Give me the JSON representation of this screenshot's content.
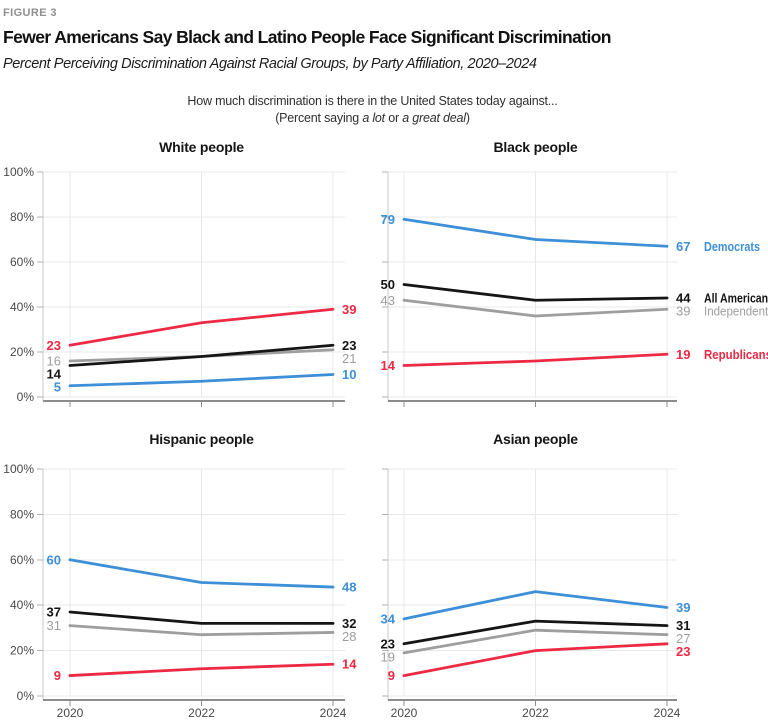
{
  "figure_label": "FIGURE 3",
  "title": "Fewer Americans Say Black and Latino People Face Significant Discrimination",
  "subtitle": "Percent Perceiving Discrimination Against Racial Groups, by Party Affiliation, 2020–2024",
  "question": {
    "line1": "How much discrimination is there in the United States today against...",
    "line2_pre": "(Percent saying ",
    "line2_italic1": "a lot",
    "line2_mid": " or ",
    "line2_italic2": "a great deal",
    "line2_post": ")"
  },
  "chart_data": {
    "type": "line",
    "x_labels": [
      "2020",
      "2022",
      "2024"
    ],
    "x_values": [
      2020,
      2022,
      2024
    ],
    "ylim": [
      0,
      100
    ],
    "ytick_step": 20,
    "ytick_suffix": "%",
    "grid": true,
    "legend_position": "right-of-top-right-panel",
    "note": "Start (2020) and end (2024) values are labeled on each line; 2022 values estimated from plot",
    "series": [
      {
        "name": "Democrats",
        "color": "#3D8FD8",
        "bold_labels": true
      },
      {
        "name": "All Americans",
        "color": "#151515",
        "bold_labels": true
      },
      {
        "name": "Independents",
        "color": "#9E9E9E",
        "bold_labels": false
      },
      {
        "name": "Republicans",
        "color": "#ED2944",
        "bold_labels": true
      }
    ],
    "panels": [
      {
        "title": "White people",
        "show_y_labels": true,
        "show_x_labels": false,
        "show_series_legend": false,
        "values": [
          [
            5,
            7,
            10
          ],
          [
            14,
            18,
            23
          ],
          [
            16,
            18,
            21
          ],
          [
            23,
            33,
            39
          ]
        ]
      },
      {
        "title": "Black people",
        "show_y_labels": false,
        "show_x_labels": false,
        "show_series_legend": true,
        "values": [
          [
            79,
            70,
            67
          ],
          [
            50,
            43,
            44
          ],
          [
            43,
            36,
            39
          ],
          [
            14,
            16,
            19
          ]
        ]
      },
      {
        "title": "Hispanic people",
        "show_y_labels": true,
        "show_x_labels": true,
        "show_series_legend": false,
        "values": [
          [
            60,
            50,
            48
          ],
          [
            37,
            32,
            32
          ],
          [
            31,
            27,
            28
          ],
          [
            9,
            12,
            14
          ]
        ]
      },
      {
        "title": "Asian people",
        "show_y_labels": false,
        "show_x_labels": true,
        "show_series_legend": false,
        "values": [
          [
            34,
            46,
            39
          ],
          [
            23,
            33,
            31
          ],
          [
            19,
            29,
            27
          ],
          [
            9,
            20,
            23
          ]
        ]
      }
    ]
  }
}
